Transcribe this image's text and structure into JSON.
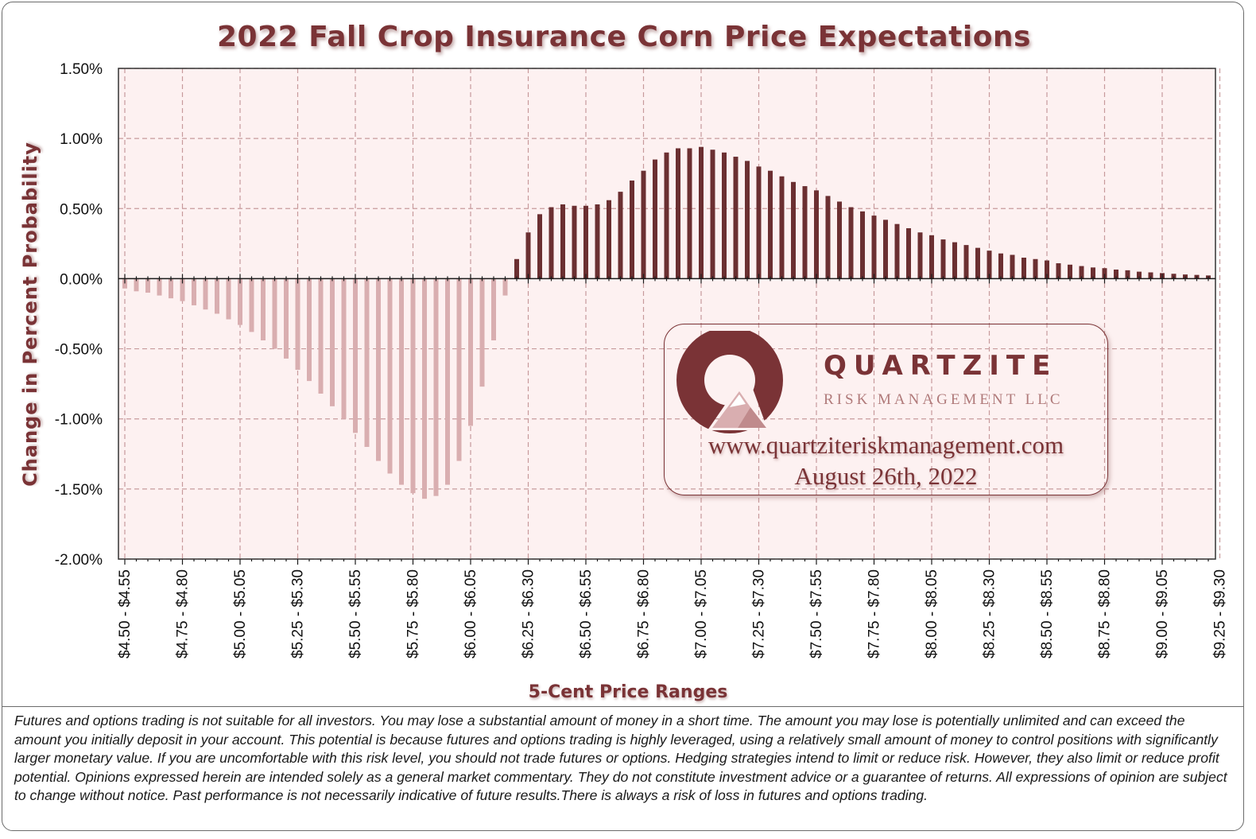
{
  "title": "2022 Fall Crop Insurance Corn Price Expectations",
  "colors": {
    "accent": "#7a3336",
    "positive_bar": "#6b2f31",
    "negative_bar": "#d9aeb0",
    "plot_bg": "#fdf1f1",
    "grid": "#c79a9c"
  },
  "chart_data": {
    "type": "bar",
    "title": "2022 Fall Crop Insurance Corn Price Expectations",
    "xlabel": "5-Cent Price Ranges",
    "ylabel": "Change in Percent  Probability",
    "ylim": [
      -2.0,
      1.5
    ],
    "yticks": [
      1.5,
      1.0,
      0.5,
      0.0,
      -0.5,
      -1.0,
      -1.5,
      -2.0
    ],
    "ytick_labels": [
      "1.50%",
      "1.00%",
      "0.50%",
      "0.00%",
      "-0.50%",
      "-1.00%",
      "-1.50%",
      "-2.00%"
    ],
    "grid": true,
    "xtick_labels": [
      "$4.50 - $4.55",
      "$4.75 - $4.80",
      "$5.00 - $5.05",
      "$5.25 - $5.30",
      "$5.50 - $5.55",
      "$5.75 - $5.80",
      "$6.00 - $6.05",
      "$6.25 - $6.30",
      "$6.50 - $6.55",
      "$6.75 - $6.80",
      "$7.00 - $7.05",
      "$7.25 - $7.30",
      "$7.50 - $7.55",
      "$7.75 - $7.80",
      "$8.00 - $8.05",
      "$8.25 - $8.30",
      "$8.50 - $8.55",
      "$8.75 - $8.80",
      "$9.00 - $9.05",
      "$9.25 - $9.30"
    ],
    "categories_first": "$4.50 - $4.55",
    "categories_last": "$9.25 - $9.30",
    "values": [
      -0.07,
      -0.09,
      -0.1,
      -0.12,
      -0.14,
      -0.16,
      -0.19,
      -0.22,
      -0.25,
      -0.29,
      -0.33,
      -0.38,
      -0.44,
      -0.5,
      -0.57,
      -0.65,
      -0.73,
      -0.82,
      -0.91,
      -1.0,
      -1.1,
      -1.2,
      -1.3,
      -1.39,
      -1.47,
      -1.53,
      -1.57,
      -1.55,
      -1.47,
      -1.3,
      -1.05,
      -0.77,
      -0.44,
      -0.12,
      0.14,
      0.33,
      0.46,
      0.51,
      0.53,
      0.52,
      0.52,
      0.53,
      0.56,
      0.62,
      0.7,
      0.77,
      0.85,
      0.9,
      0.93,
      0.93,
      0.94,
      0.92,
      0.9,
      0.87,
      0.84,
      0.8,
      0.77,
      0.73,
      0.69,
      0.66,
      0.63,
      0.59,
      0.55,
      0.51,
      0.48,
      0.45,
      0.42,
      0.39,
      0.36,
      0.33,
      0.31,
      0.28,
      0.26,
      0.24,
      0.22,
      0.2,
      0.18,
      0.17,
      0.15,
      0.14,
      0.13,
      0.11,
      0.1,
      0.09,
      0.08,
      0.075,
      0.065,
      0.06,
      0.05,
      0.045,
      0.04,
      0.035,
      0.03,
      0.027,
      0.023
    ]
  },
  "logo": {
    "name": "QUARTZITE",
    "subtitle": "RISK MANAGEMENT LLC",
    "url": "www.quartziteriskmanagement.com",
    "date": "August 26th, 2022"
  },
  "disclaimer": "Futures and options trading is not suitable for all investors. You may lose a substantial amount of money in a short time.  The amount you may lose is potentially unlimited and can exceed the amount you initially deposit in your account. This potential is because futures and options trading is highly leveraged, using a relatively small amount of money to control positions with significantly larger monetary value. If you are uncomfortable with this risk level, you should not trade futures or options. Hedging strategies intend to limit or reduce risk. However, they also limit or reduce profit potential. Opinions expressed herein are intended solely as a general market commentary. They do not constitute investment advice or a guarantee of returns. All expressions of opinion are subject to change without notice. Past performance is not necessarily indicative of future results.There is always a risk of loss in futures and options trading."
}
